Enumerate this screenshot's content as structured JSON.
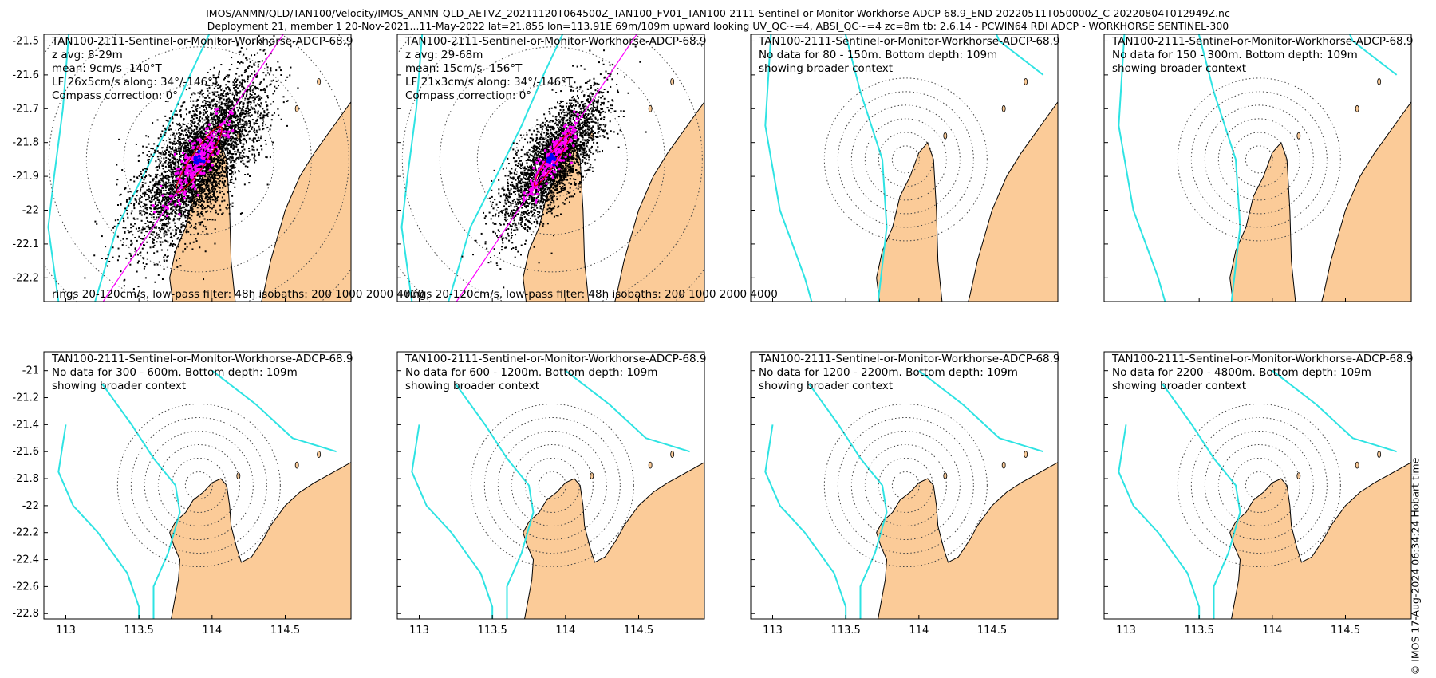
{
  "header": {
    "line1": "IMOS/ANMN/QLD/TAN100/Velocity/IMOS_ANMN-QLD_AETVZ_20211120T064500Z_TAN100_FV01_TAN100-2111-Sentinel-or-Monitor-Workhorse-ADCP-68.9_END-20220511T050000Z_C-20220804T012949Z.nc",
    "line2": "Deployment 21, member 1 20-Nov-2021...11-May-2022 lat=21.85S lon=113.91E 69m/109m upward looking UV_QC~=4, ABSI_QC~=4 zc=8m tb: 2.6.14 - PCWIN64 RDI ADCP - WORKHORSE SENTINEL-300"
  },
  "copyright": "© IMOS 17-Aug-2024 06:34:24 Hobart time",
  "colors": {
    "land": "#fbcb98",
    "isobath": "#2ee3e3",
    "scatter": "#000000",
    "magenta": "#ff00ff",
    "blue": "#0000ff",
    "ellipse": "#d40000",
    "rings": "#444444"
  },
  "chart_data": {
    "type": "scatter",
    "x_ticks": [
      "113",
      "113.5",
      "114",
      "114.5"
    ],
    "x_tick_values": [
      113,
      113.5,
      114,
      114.5
    ],
    "xlim": [
      112.85,
      114.95
    ],
    "top_row": {
      "ylim": [
        -22.27,
        -21.48
      ],
      "y_ticks": [
        "-21.5",
        "-21.6",
        "-21.7",
        "-21.8",
        "-21.9",
        "-22",
        "-22.1",
        "-22.2"
      ],
      "y_tick_values": [
        -21.5,
        -21.6,
        -21.7,
        -21.8,
        -21.9,
        -22,
        -22.1,
        -22.2
      ]
    },
    "bottom_row": {
      "ylim": [
        -22.84,
        -20.86
      ],
      "y_ticks": [
        "-21",
        "-21.2",
        "-21.4",
        "-21.6",
        "-21.8",
        "-22",
        "-22.2",
        "-22.4",
        "-22.6",
        "-22.8"
      ],
      "y_tick_values": [
        -21,
        -21.2,
        -21.4,
        -21.6,
        -21.8,
        -22,
        -22.2,
        -22.4,
        -22.6,
        -22.8
      ]
    },
    "mooring": {
      "lon": 113.91,
      "lat": -21.85
    },
    "panels": [
      {
        "title": "TAN100-2111-Sentinel-or-Monitor-Workhorse-ADCP-68.9",
        "lines": [
          "z avg: 8-29m",
          "mean: 9cm/s -140°T",
          "LF 26x5cm/s along: 34°/-146°T",
          "Compass correction: 0°"
        ],
        "footer": "rings 20-120cm/s, low-pass filter: 48h isobaths: 200 1000 2000 4000",
        "has_data": true,
        "mean_speed_cm_s": 9,
        "mean_dir_deg_T": -140,
        "ellipse_major_cm_s": 26,
        "ellipse_minor_cm_s": 5,
        "along_axis_deg": 34
      },
      {
        "title": "TAN100-2111-Sentinel-or-Monitor-Workhorse-ADCP-68.9",
        "lines": [
          "z avg: 29-68m",
          "mean: 15cm/s -156°T",
          "LF 21x3cm/s along: 34°/-146°T",
          "Compass correction: 0°"
        ],
        "footer": "rings 20-120cm/s, low-pass filter: 48h isobaths: 200 1000 2000 4000",
        "has_data": true,
        "mean_speed_cm_s": 15,
        "mean_dir_deg_T": -156,
        "ellipse_major_cm_s": 21,
        "ellipse_minor_cm_s": 3,
        "along_axis_deg": 34
      },
      {
        "title": "TAN100-2111-Sentinel-or-Monitor-Workhorse-ADCP-68.9",
        "lines": [
          "No data for 80 - 150m. Bottom depth: 109m",
          "showing broader context"
        ],
        "has_data": false
      },
      {
        "title": "TAN100-2111-Sentinel-or-Monitor-Workhorse-ADCP-68.9",
        "lines": [
          "No data for 150 - 300m. Bottom depth: 109m",
          "showing broader context"
        ],
        "has_data": false
      },
      {
        "title": "TAN100-2111-Sentinel-or-Monitor-Workhorse-ADCP-68.9",
        "lines": [
          "No data for 300 - 600m. Bottom depth: 109m",
          "showing broader context"
        ],
        "has_data": false
      },
      {
        "title": "TAN100-2111-Sentinel-or-Monitor-Workhorse-ADCP-68.9",
        "lines": [
          "No data for 600 - 1200m. Bottom depth: 109m",
          "showing broader context"
        ],
        "has_data": false
      },
      {
        "title": "TAN100-2111-Sentinel-or-Monitor-Workhorse-ADCP-68.9",
        "lines": [
          "No data for 1200 - 2200m. Bottom depth: 109m",
          "showing broader context"
        ],
        "has_data": false
      },
      {
        "title": "TAN100-2111-Sentinel-or-Monitor-Workhorse-ADCP-68.9",
        "lines": [
          "No data for 2200 - 4800m. Bottom depth: 109m",
          "showing broader context"
        ],
        "has_data": false
      }
    ],
    "ring_speeds_cm_s": [
      20,
      40,
      60,
      80,
      100,
      120
    ],
    "isobaths_m": [
      200,
      1000,
      2000,
      4000
    ]
  }
}
